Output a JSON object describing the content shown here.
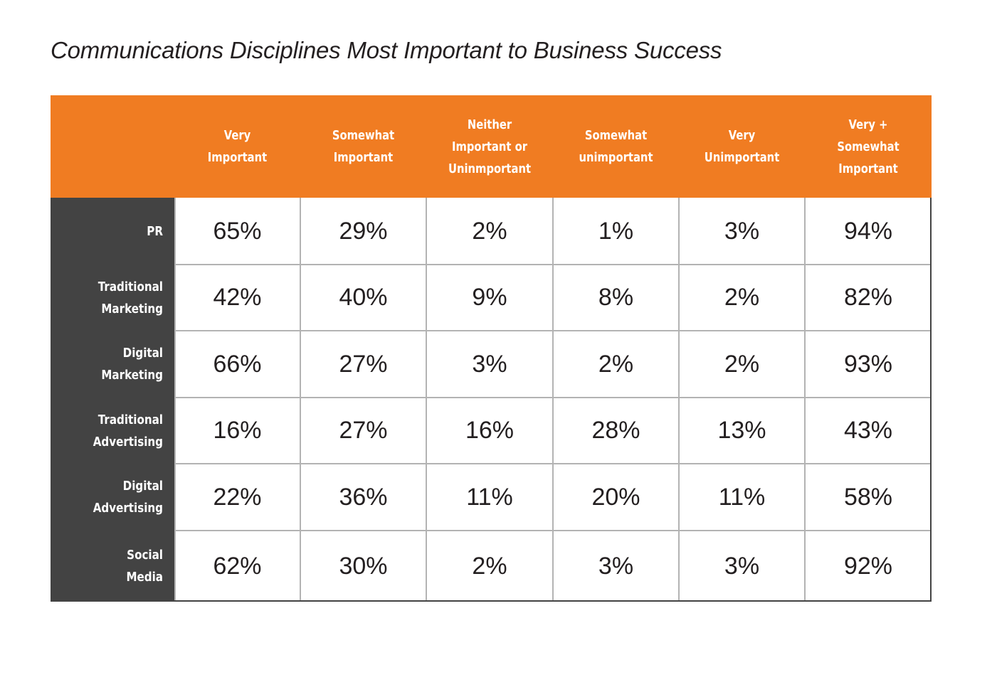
{
  "chart_data": {
    "type": "table",
    "title": "Communications Disciplines Most Important to Business Success",
    "columns": [
      "Very\nImportant",
      "Somewhat\nImportant",
      "Neither\nImportant or\nUninmportant",
      "Somewhat\nunimportant",
      "Very\nUnimportant",
      "Very +\nSomewhat\nImportant"
    ],
    "rows": [
      {
        "label": "PR",
        "values": [
          "65%",
          "29%",
          "2%",
          "1%",
          "3%",
          "94%"
        ]
      },
      {
        "label": "Traditional\nMarketing",
        "values": [
          "42%",
          "40%",
          "9%",
          "8%",
          "2%",
          "82%"
        ]
      },
      {
        "label": "Digital\nMarketing",
        "values": [
          "66%",
          "27%",
          "3%",
          "2%",
          "2%",
          "93%"
        ]
      },
      {
        "label": "Traditional\nAdvertising",
        "values": [
          "16%",
          "27%",
          "16%",
          "28%",
          "13%",
          "43%"
        ]
      },
      {
        "label": "Digital\nAdvertising",
        "values": [
          "22%",
          "36%",
          "11%",
          "20%",
          "11%",
          "58%"
        ]
      },
      {
        "label": "Social\nMedia",
        "values": [
          "62%",
          "30%",
          "2%",
          "3%",
          "3%",
          "92%"
        ]
      }
    ]
  },
  "colors": {
    "header_band": "#f07c22",
    "stub_column": "#434343",
    "grid_lines": "#b3b3b3",
    "cell_text": "#231f20",
    "header_text": "#ffffff"
  }
}
